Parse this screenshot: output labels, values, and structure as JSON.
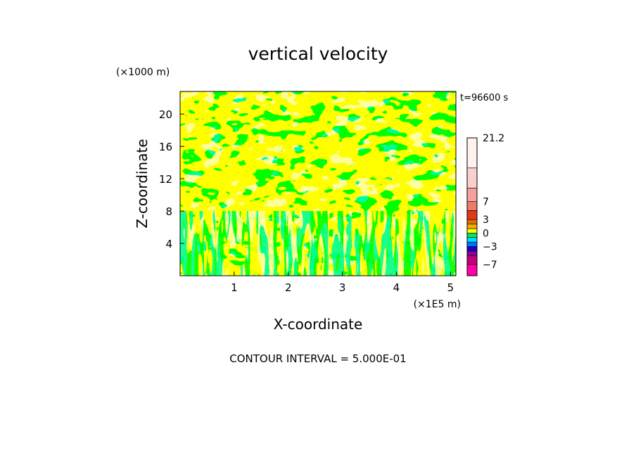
{
  "chart_data": {
    "type": "heatmap",
    "title": "vertical velocity",
    "xlabel": "X-coordinate",
    "ylabel": "Z-coordinate",
    "x_unit": "(×1E5 m)",
    "y_unit": "(×1000 m)",
    "time_label": "t=96600 s",
    "footer": "CONTOUR INTERVAL = 5.000E-01",
    "xlim": [
      0,
      5.1
    ],
    "ylim": [
      0,
      22.8
    ],
    "x_ticks": [
      "1",
      "2",
      "3",
      "4",
      "5"
    ],
    "y_ticks": [
      "4",
      "8",
      "12",
      "16",
      "20"
    ],
    "colorbar": {
      "range": [
        -9.5,
        21.2
      ],
      "labels": [
        "21.2",
        "7",
        "3",
        "0",
        "−3",
        "−7"
      ],
      "colors": [
        "#ff00a8",
        "#c2007a",
        "#8a00a0",
        "#2000c8",
        "#0070ff",
        "#00d8ff",
        "#00e860",
        "#ffff00",
        "#f0b000",
        "#e07000",
        "#e03a1a",
        "#ee7a6a",
        "#f5a09a",
        "#fad0cc",
        "#fff2ee"
      ]
    },
    "field_colors": {
      "low": "#00ff55",
      "high": "#ffff00"
    }
  }
}
